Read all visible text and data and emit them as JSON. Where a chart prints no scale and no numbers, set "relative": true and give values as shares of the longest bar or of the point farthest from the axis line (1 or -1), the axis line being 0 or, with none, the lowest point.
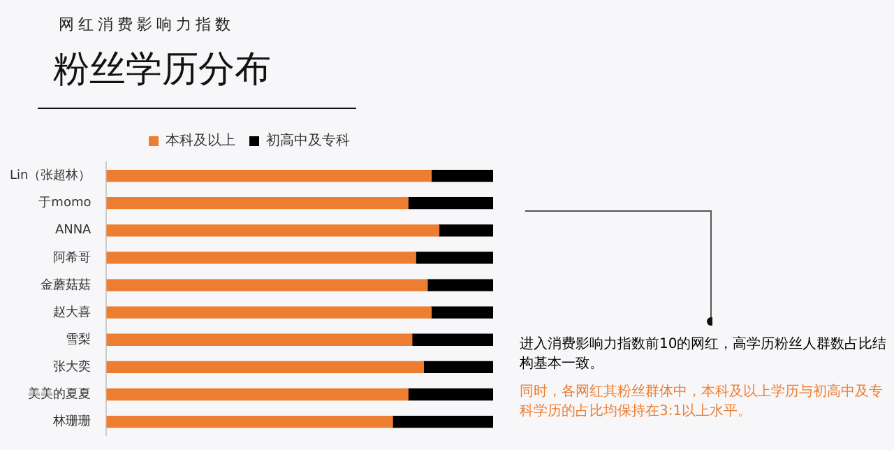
{
  "chart_data": {
    "type": "bar",
    "orientation": "horizontal",
    "stacked": true,
    "relative": true,
    "title": "粉丝学历分布",
    "subtitle": "网红消费影响力指数",
    "categories": [
      "Lin（张超林）",
      "于momo",
      "ANNA",
      "阿希哥",
      "金蘑菇菇",
      "赵大喜",
      "雪梨",
      "张大奕",
      "美美的夏夏",
      "林珊珊"
    ],
    "series": [
      {
        "name": "本科及以上",
        "color": "#ed7d31",
        "values": [
          0.84,
          0.78,
          0.86,
          0.8,
          0.83,
          0.84,
          0.79,
          0.82,
          0.78,
          0.74
        ]
      },
      {
        "name": "初高中及专科",
        "color": "#000000",
        "values": [
          0.16,
          0.22,
          0.14,
          0.2,
          0.17,
          0.16,
          0.21,
          0.18,
          0.22,
          0.26
        ]
      }
    ],
    "legend": "top",
    "annotations": [
      "进入消费影响力指数前10的网红，高学历粉丝人群数占比结构基本一致。",
      "同时，各网红其粉丝群体中，本科及以上学历与初高中及专科学历的占比均保持在3:1以上水平。"
    ]
  }
}
